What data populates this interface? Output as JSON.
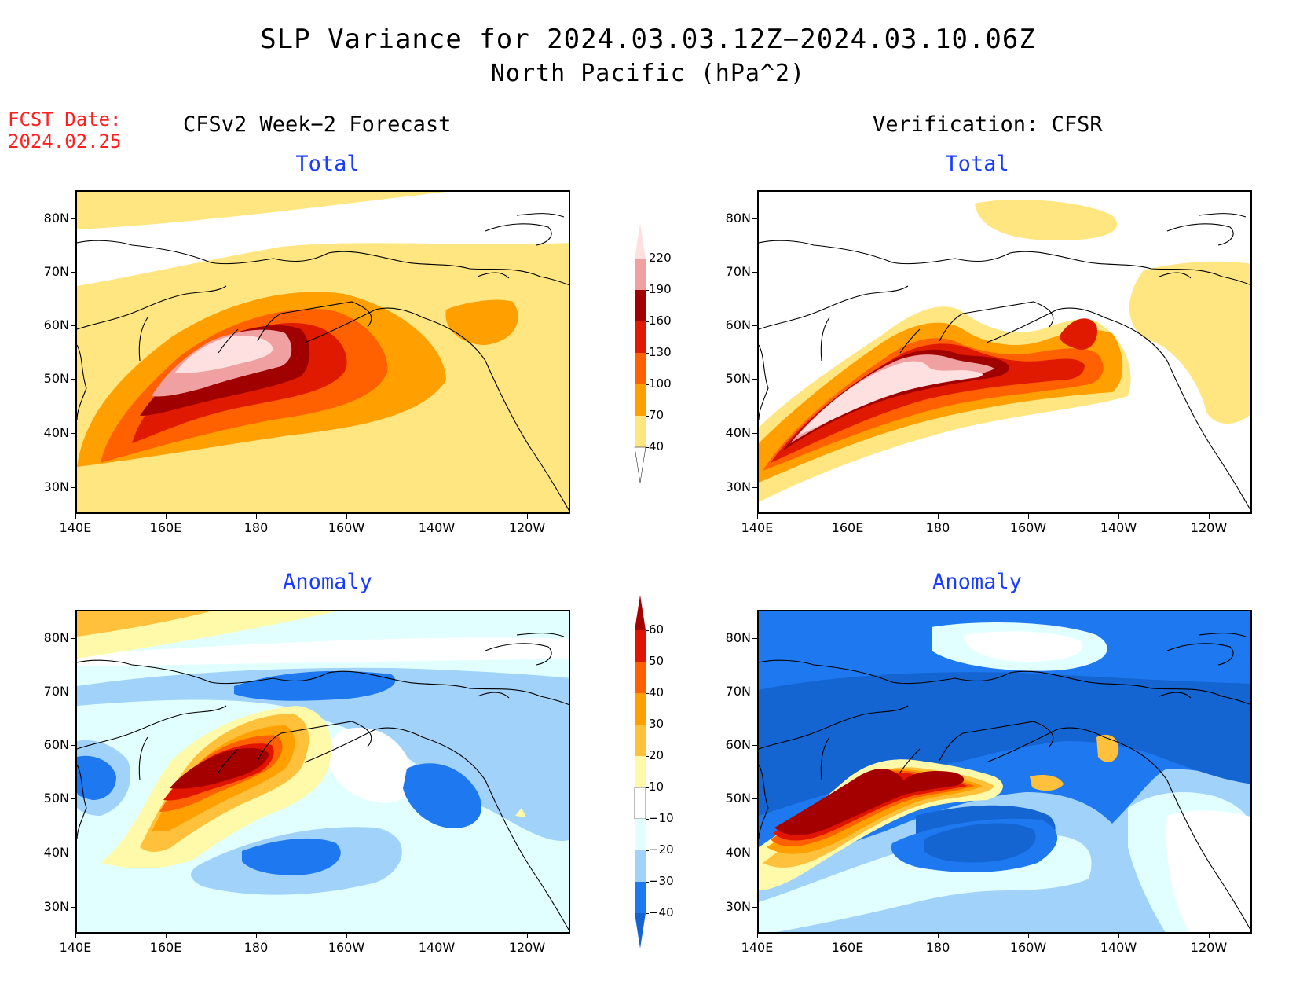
{
  "title": "SLP Variance for 2024.03.03.12Z−2024.03.10.06Z",
  "subtitle": "North Pacific (hPa^2)",
  "fcst_label": "FCST Date:",
  "fcst_date": "2024.02.25",
  "left_column_title": "CFSv2 Week−2 Forecast",
  "right_column_title": "Verification: CFSR",
  "panels": [
    {
      "id": "forecast-total",
      "title": "Total"
    },
    {
      "id": "verification-total",
      "title": "Total"
    },
    {
      "id": "forecast-anomaly",
      "title": "Anomaly"
    },
    {
      "id": "verification-anomaly",
      "title": "Anomaly"
    }
  ],
  "lat_labels": [
    "80N",
    "70N",
    "60N",
    "50N",
    "40N",
    "30N"
  ],
  "lon_labels": [
    "140E",
    "160E",
    "180",
    "160W",
    "140W",
    "120W"
  ],
  "total_colorbar": {
    "levels": [
      "40",
      "70",
      "100",
      "130",
      "160",
      "190",
      "220"
    ],
    "colors": [
      "#ffffff",
      "#ffe680",
      "#ffa000",
      "#ff6000",
      "#e01a00",
      "#a00000",
      "#f0a0a0",
      "#ffe0e0"
    ]
  },
  "anomaly_colorbar": {
    "levels": [
      "−40",
      "−30",
      "−20",
      "−10",
      "10",
      "20",
      "30",
      "40",
      "50",
      "60"
    ],
    "colors": [
      "#1464d2",
      "#1e78f0",
      "#a0d2fa",
      "#e1ffff",
      "#ffffff",
      "#fffaaa",
      "#ffc03c",
      "#ffa000",
      "#ff6000",
      "#e11400",
      "#a50000"
    ]
  },
  "chart_data": {
    "type": "heatmap",
    "title": "SLP Variance for 2024.03.03.12Z−2024.03.10.06Z",
    "units": "hPa^2",
    "region": "North Pacific",
    "lat_range": [
      "25N",
      "85N"
    ],
    "lon_range": [
      "140E",
      "110W"
    ],
    "panels": [
      {
        "name": "CFSv2 Week−2 Forecast – Total",
        "max_category": ">220",
        "max_location": "~50N, 170E"
      },
      {
        "name": "Verification: CFSR – Total",
        "max_category": ">220",
        "max_location": "~45N, 165E–175W"
      },
      {
        "name": "CFSv2 Week−2 Forecast – Anomaly",
        "max_category": ">60",
        "max_location": "~52N, 175E",
        "min_category": "<−40",
        "min_location": "~38N, 170W"
      },
      {
        "name": "Verification: CFSR – Anomaly",
        "max_category": ">60",
        "max_location": "~45N, 165E",
        "min_category": "<−40",
        "min_location": "~40N, 160W"
      }
    ]
  }
}
